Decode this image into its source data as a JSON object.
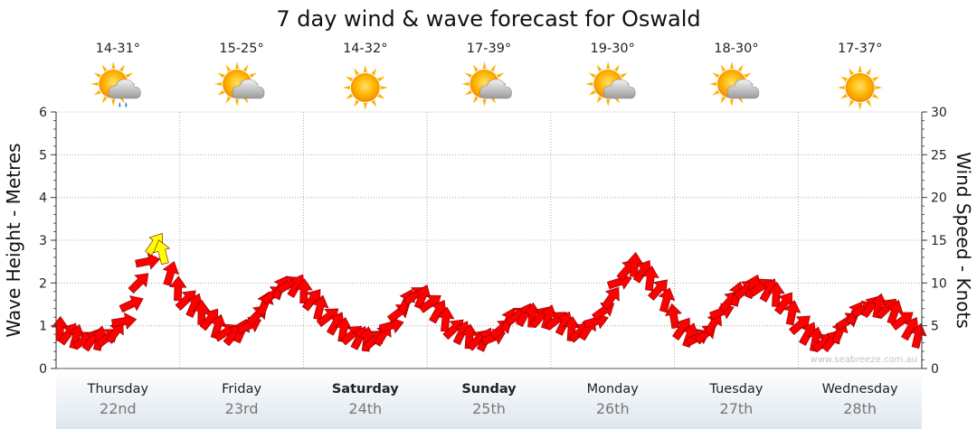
{
  "chart_data": {
    "type": "line",
    "title": "7 day wind & wave forecast for Oswald",
    "ylabel_left": "Wave Height - Metres",
    "ylabel_right": "Wind Speed - Knots",
    "ylim_left": [
      0,
      6
    ],
    "ylim_right": [
      0,
      30
    ],
    "yticks_left": [
      "0",
      "1",
      "2",
      "3",
      "4",
      "5",
      "6"
    ],
    "yticks_right": [
      "0",
      "5",
      "10",
      "15",
      "20",
      "25",
      "30"
    ],
    "grid": true,
    "days": [
      {
        "day": "Thursday",
        "date": "22nd",
        "temp": "14-31°",
        "icon": "sun-cloud-rain-icon",
        "bold": false
      },
      {
        "day": "Friday",
        "date": "23rd",
        "temp": "15-25°",
        "icon": "sun-cloud-icon",
        "bold": false
      },
      {
        "day": "Saturday",
        "date": "24th",
        "temp": "14-32°",
        "icon": "sun-icon",
        "bold": true
      },
      {
        "day": "Sunday",
        "date": "25th",
        "temp": "17-39°",
        "icon": "sun-cloud-icon",
        "bold": true
      },
      {
        "day": "Monday",
        "date": "26th",
        "temp": "19-30°",
        "icon": "sun-cloud-icon",
        "bold": false
      },
      {
        "day": "Tuesday",
        "date": "27th",
        "temp": "18-30°",
        "icon": "sun-cloud-icon",
        "bold": false
      },
      {
        "day": "Wednesday",
        "date": "28th",
        "temp": "17-37°",
        "icon": "sun-icon",
        "bold": false
      }
    ],
    "wind_knots": [
      4.5,
      4,
      3.6,
      3.3,
      3.3,
      3.4,
      3.6,
      4.2,
      5.5,
      7.5,
      10,
      12.5,
      14.5,
      13.5,
      11,
      9.2,
      8,
      7.3,
      6.4,
      5.7,
      4.8,
      4.2,
      3.9,
      4.3,
      5,
      6.2,
      7.5,
      8.6,
      9.4,
      9.8,
      9.6,
      8.9,
      8,
      7,
      6,
      5.2,
      4.4,
      3.9,
      3.5,
      3.3,
      3.4,
      3.9,
      5,
      6.5,
      7.8,
      8.5,
      8.3,
      7.6,
      6.6,
      5.6,
      4.6,
      4.1,
      3.6,
      3.3,
      3.3,
      3.6,
      4.6,
      5.6,
      6.1,
      6.2,
      6.1,
      6,
      5.9,
      5.6,
      5.2,
      4.5,
      4.2,
      4.6,
      5.5,
      6.7,
      8.2,
      10.1,
      11.5,
      12,
      11.3,
      10.4,
      9.2,
      7.9,
      6,
      4.6,
      3.8,
      3.6,
      4,
      5.2,
      6.6,
      7.8,
      8.6,
      9.2,
      9.5,
      9.5,
      9.1,
      8.5,
      7.6,
      6.4,
      5.1,
      4,
      3.3,
      3,
      3.2,
      4.2,
      5.5,
      6.4,
      6.9,
      7.2,
      7.2,
      7,
      6.5,
      5.6,
      4.6,
      3.7
    ],
    "wind_colors": {
      "normal": "#ff0000",
      "strong": "#ffff00"
    },
    "strong_indices": [
      12,
      13
    ],
    "wave_height_note": ""
  },
  "watermark": "www.seabreeze.com.au"
}
